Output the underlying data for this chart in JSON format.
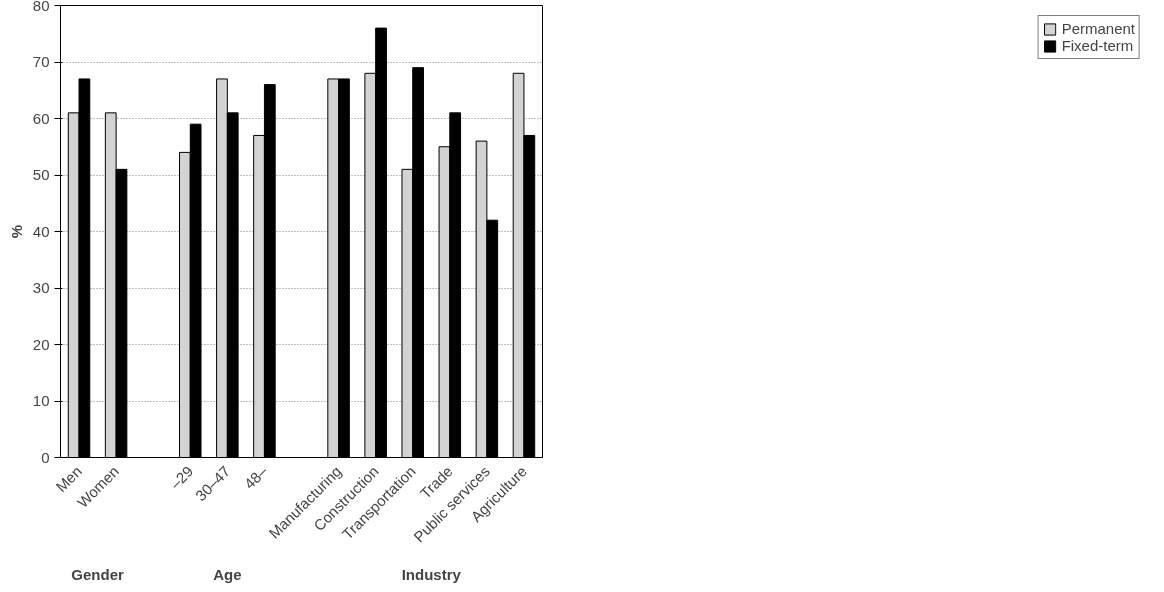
{
  "chart_data": {
    "type": "bar",
    "ylabel": "%",
    "categories": [
      "Men",
      "Women",
      null,
      "–29",
      "30–47",
      "48–",
      null,
      "Manufacturing",
      "Construction",
      "Transportation",
      "Trade",
      "Public services",
      "Agriculture"
    ],
    "series": [
      {
        "name": "Permanent",
        "color": "#d3d3d3",
        "values": [
          61,
          61,
          null,
          54,
          67,
          57,
          null,
          67,
          68,
          51,
          55,
          56,
          68
        ]
      },
      {
        "name": "Fixed-term",
        "color": "#000000",
        "values": [
          67,
          51,
          null,
          59,
          61,
          66,
          null,
          67,
          76,
          69,
          61,
          42,
          57
        ]
      }
    ],
    "annotations": [
      "Gender",
      "Age",
      "Industry"
    ],
    "ylim": [
      0,
      80
    ],
    "yticks": [
      0,
      10,
      20,
      30,
      40,
      50,
      60,
      70,
      80
    ],
    "grid": "y",
    "legend": "right"
  }
}
